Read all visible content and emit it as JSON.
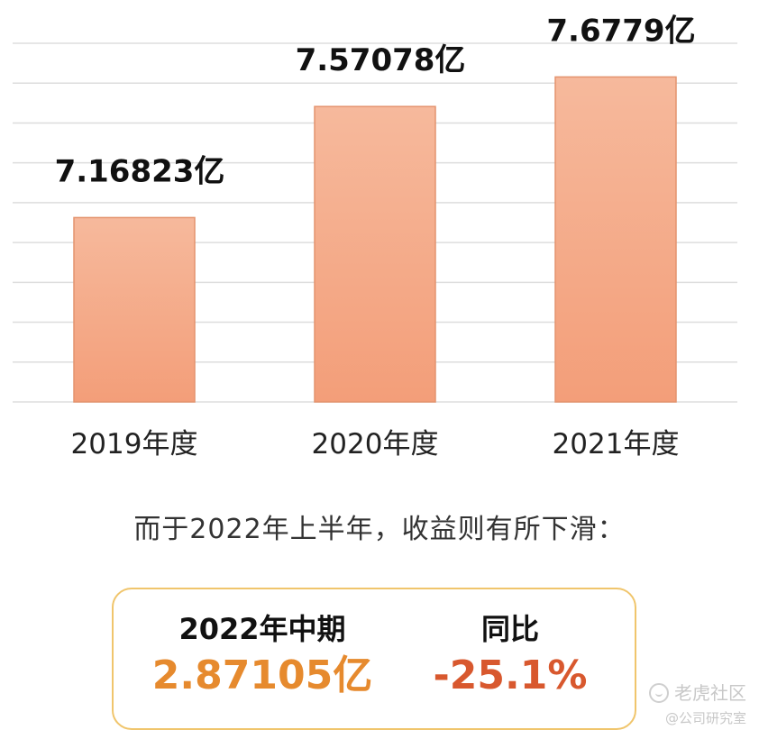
{
  "chart_data": {
    "type": "bar",
    "categories": [
      "2019年度",
      "2020年度",
      "2021年度"
    ],
    "values": [
      7.16823,
      7.57078,
      7.6779
    ],
    "data_labels": [
      "7.16823亿",
      "7.57078亿",
      "7.6779亿"
    ],
    "unit": "亿",
    "ylim": [
      6.5,
      7.8
    ],
    "grid": true,
    "legend": "none",
    "bar_color_top": "#f6b99c",
    "bar_color_bottom": "#f39e79",
    "bar_border_color": "#e4936e",
    "grid_color": "#dddddd"
  },
  "caption": "而于2022年上半年，收益则有所下滑：",
  "summary": {
    "period_label": "2022年中期",
    "period_value": "2.87105亿",
    "yoy_label": "同比",
    "yoy_value": "-25.1%",
    "border_color": "#f0c56c",
    "value_color": "#e68a2e",
    "yoy_color": "#d8582e"
  },
  "watermark": {
    "icon": "tiger-community-logo-icon",
    "brand": "老虎社区",
    "handle": "@公司研究室"
  }
}
